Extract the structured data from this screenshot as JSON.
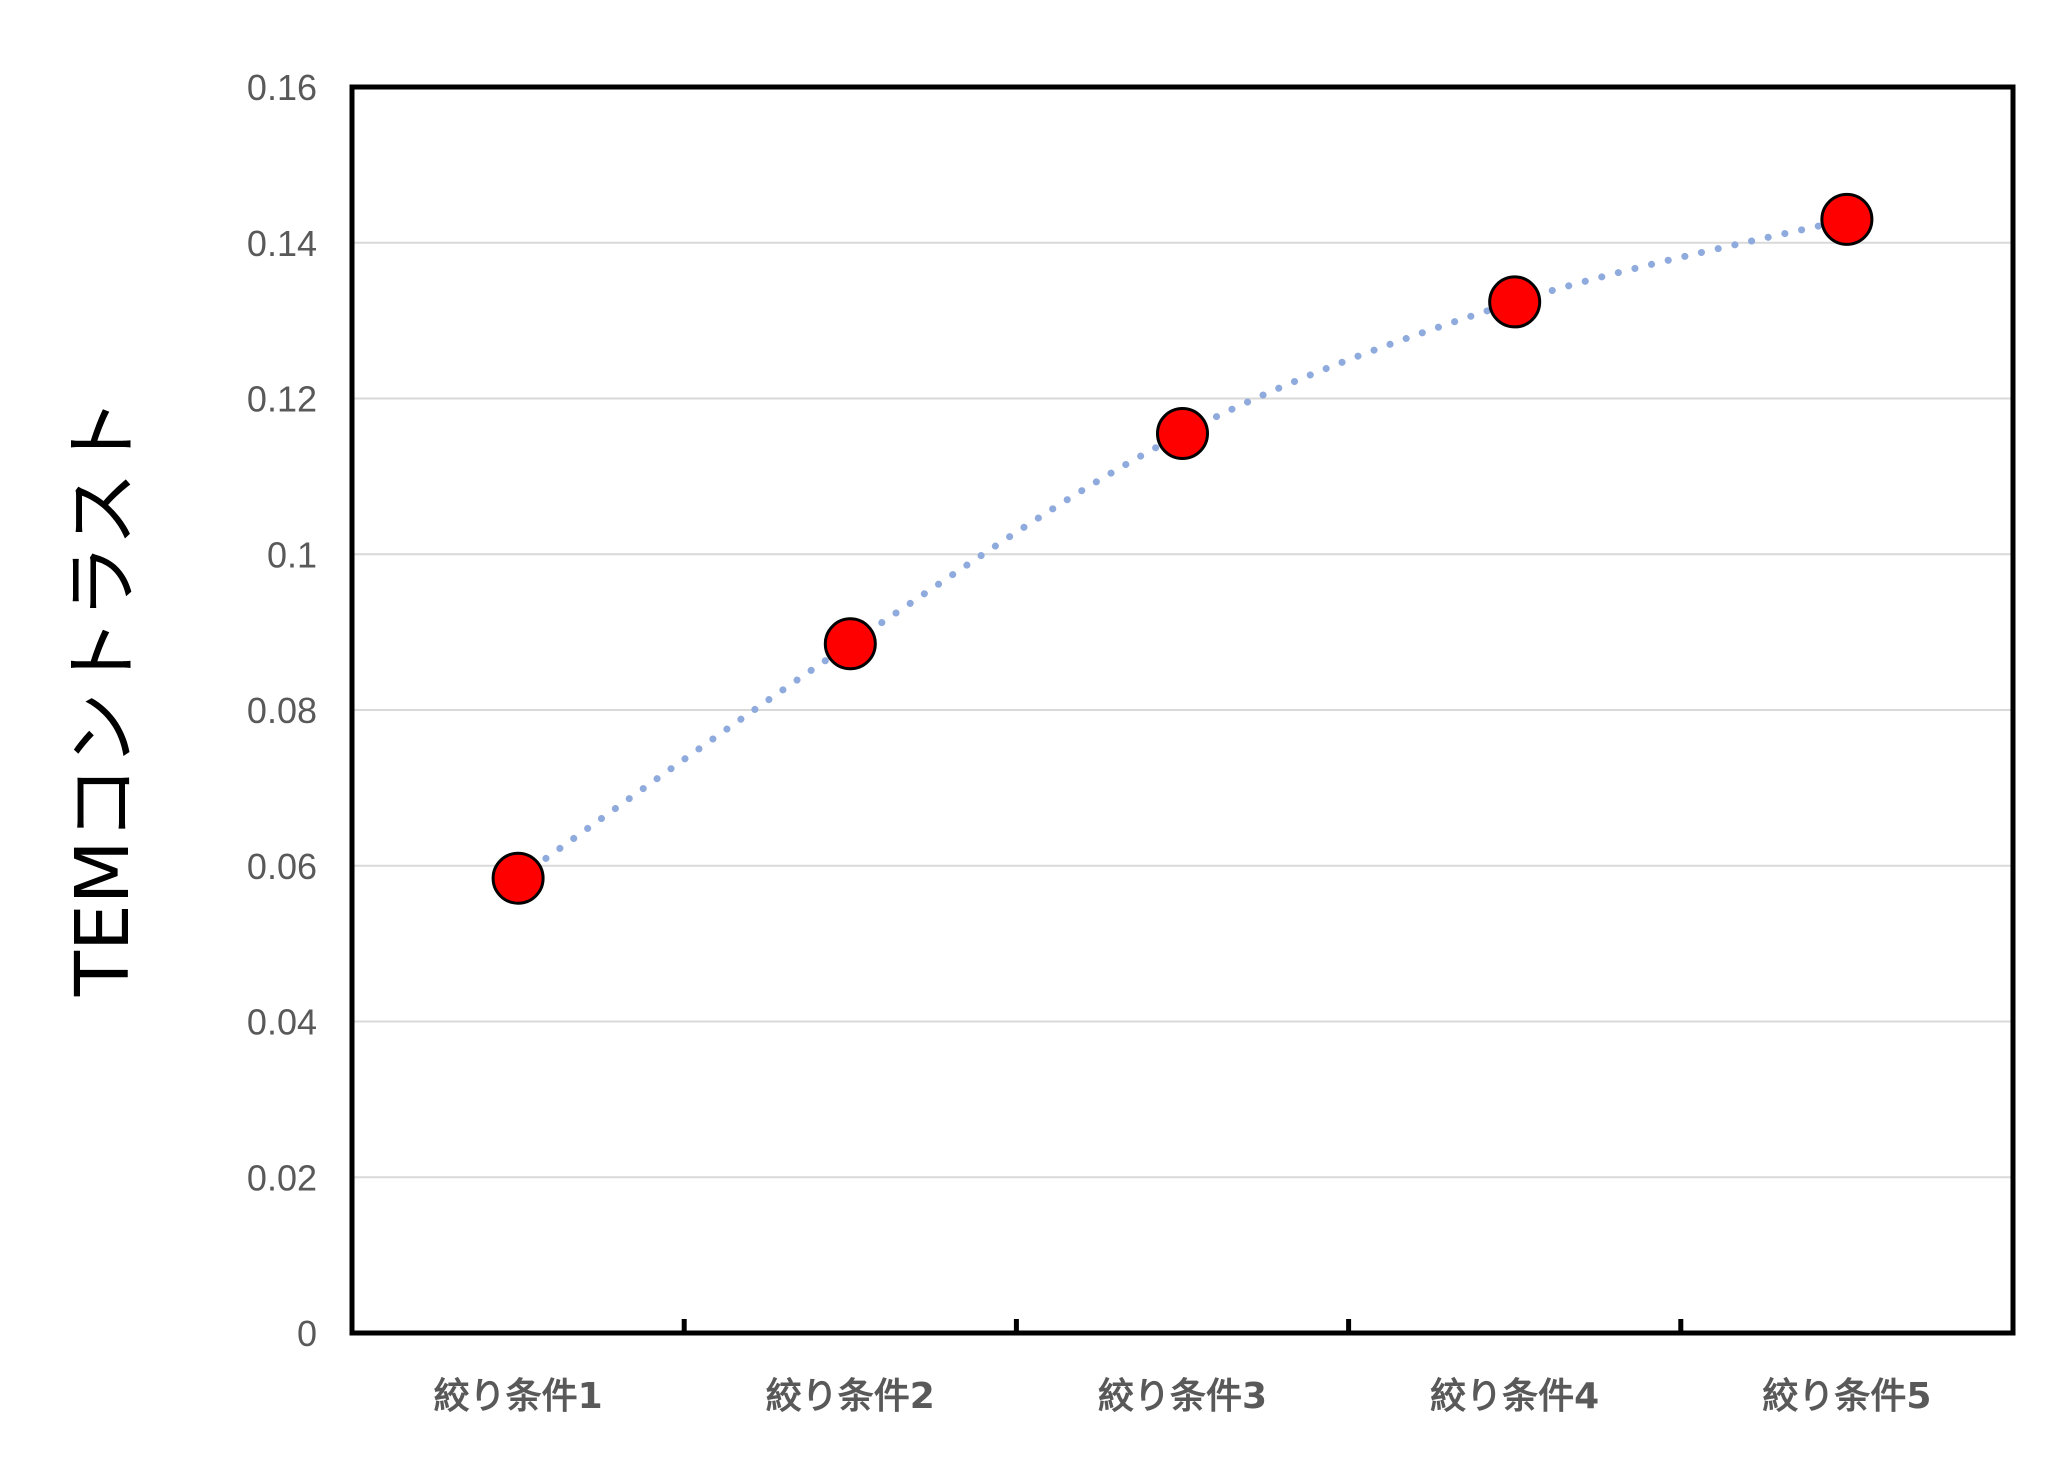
{
  "chart_data": {
    "type": "scatter",
    "title": "",
    "xlabel": "",
    "ylabel": "TEMコントラスト",
    "categories": [
      "絞り条件1",
      "絞り条件2",
      "絞り条件3",
      "絞り条件4",
      "絞り条件5"
    ],
    "series": [
      {
        "values": [
          0.0584,
          0.0885,
          0.1155,
          0.1324,
          0.143
        ],
        "marker_color": "#ff0000",
        "marker_edge_color": "#000000"
      }
    ],
    "trendline": {
      "style": "dotted",
      "color": "#8faadc"
    },
    "ylim": [
      0,
      0.16
    ],
    "yticks": [
      "0",
      "0.02",
      "0.04",
      "0.06",
      "0.08",
      "0.1",
      "0.12",
      "0.14",
      "0.16"
    ],
    "ytick_values": [
      0,
      0.02,
      0.04,
      0.06,
      0.08,
      0.1,
      0.12,
      0.14,
      0.16
    ],
    "grid": "horizontal",
    "grid_color": "#d9d9d9",
    "axis_color": "#000000",
    "legend": "none"
  }
}
